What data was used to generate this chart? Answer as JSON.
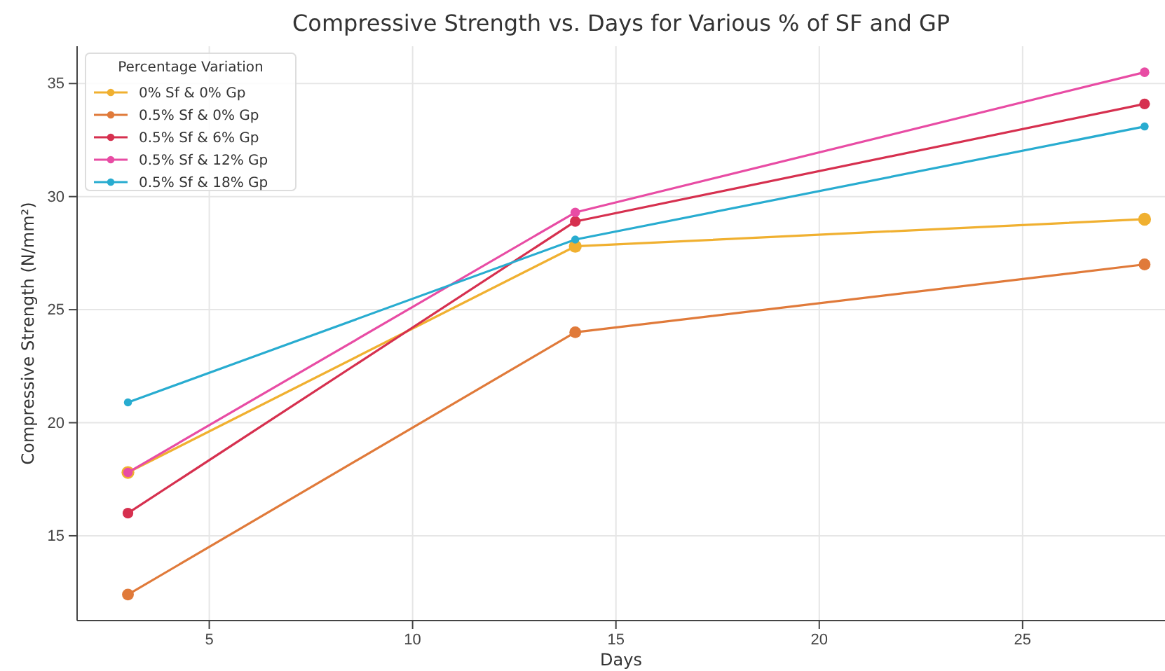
{
  "chart_data": {
    "type": "line",
    "title": "Compressive Strength vs. Days for Various % of SF and GP",
    "xlabel": "Days",
    "ylabel": "Compressive Strength (N/mm²)",
    "legend_title": "Percentage Variation",
    "x": [
      3,
      14,
      28
    ],
    "series": [
      {
        "name": "0% Sf & 0% Gp",
        "color": "#f0b030",
        "values": [
          17.8,
          27.8,
          29.0
        ]
      },
      {
        "name": "0.5% Sf & 0% Gp",
        "color": "#e07a3a",
        "values": [
          12.4,
          24.0,
          27.0
        ]
      },
      {
        "name": "0.5% Sf & 6% Gp",
        "color": "#d6304f",
        "values": [
          16.0,
          28.9,
          34.1
        ]
      },
      {
        "name": "0.5% Sf & 12% Gp",
        "color": "#e84ca4",
        "values": [
          17.8,
          29.3,
          35.5
        ]
      },
      {
        "name": "0.5% Sf & 18% Gp",
        "color": "#28acd0",
        "values": [
          20.9,
          28.1,
          33.1
        ]
      }
    ],
    "xlim": [
      1.75,
      29.25
    ],
    "xticks": [
      5,
      10,
      15,
      20,
      25
    ],
    "ylim": [
      11.25,
      36.65
    ],
    "yticks": [
      15,
      20,
      25,
      30,
      35
    ],
    "grid": true,
    "legend": "top left",
    "marker": "circle",
    "line_style": "solid"
  }
}
